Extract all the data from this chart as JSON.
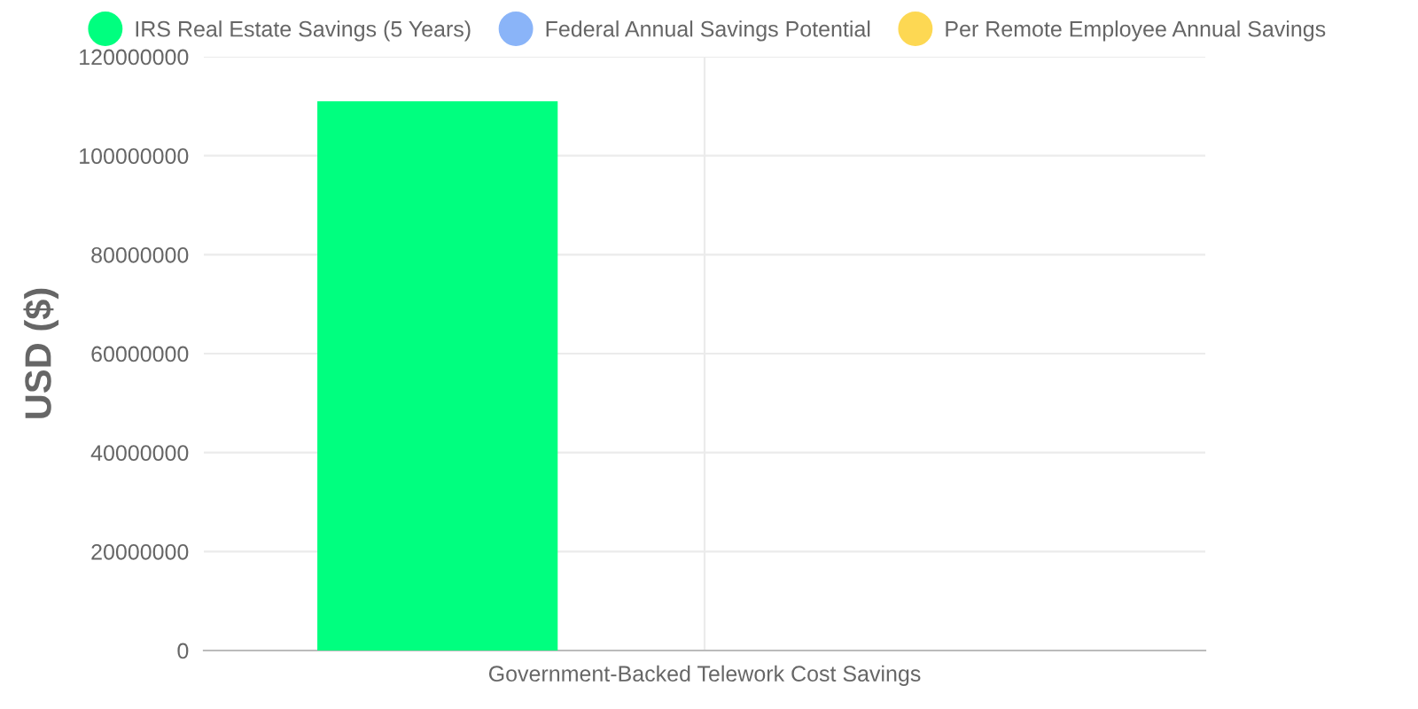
{
  "chart_data": {
    "type": "bar",
    "categories": [
      "Government-Backed Telework Cost Savings"
    ],
    "series": [
      {
        "name": "IRS Real Estate Savings (5 Years)",
        "color": "#00ff7f",
        "values": [
          111000000
        ]
      },
      {
        "name": "Federal Annual Savings Potential",
        "color": "#8ab4f8",
        "values": [
          0
        ]
      },
      {
        "name": "Per Remote Employee Annual Savings",
        "color": "#fdd853",
        "values": [
          0
        ]
      }
    ],
    "ylabel": "USD ($)",
    "ylim": [
      0,
      120000000
    ],
    "yticks": [
      0,
      20000000,
      40000000,
      60000000,
      80000000,
      100000000,
      120000000
    ],
    "grid": true,
    "legend": "top"
  }
}
